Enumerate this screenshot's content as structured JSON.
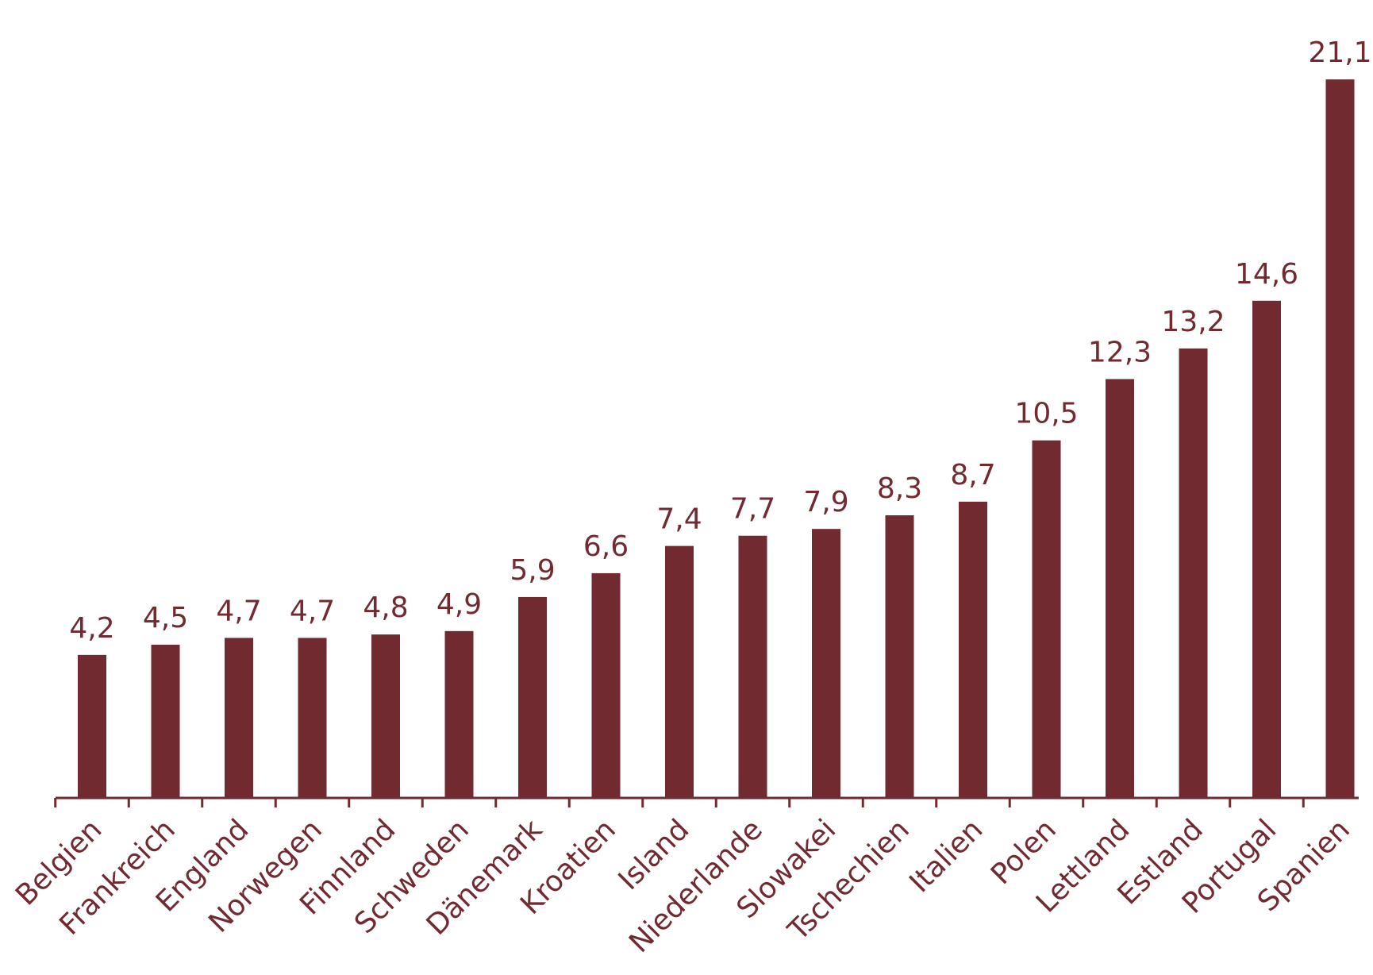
{
  "chart_data": {
    "type": "bar",
    "categories": [
      "Belgien",
      "Frankreich",
      "England",
      "Norwegen",
      "Finnland",
      "Schweden",
      "Dänemark",
      "Kroatien",
      "Island",
      "Niederlande",
      "Slowakei",
      "Tschechien",
      "Italien",
      "Polen",
      "Lettland",
      "Estland",
      "Portugal",
      "Spanien"
    ],
    "values": [
      4.2,
      4.5,
      4.7,
      4.7,
      4.8,
      4.9,
      5.9,
      6.6,
      7.4,
      7.7,
      7.9,
      8.3,
      8.7,
      10.5,
      12.3,
      13.2,
      14.6,
      21.1
    ],
    "value_labels": [
      "4,2",
      "4,5",
      "4,7",
      "4,7",
      "4,8",
      "4,9",
      "5,9",
      "6,6",
      "7,4",
      "7,7",
      "7,9",
      "8,3",
      "8,7",
      "10,5",
      "12,3",
      "13,2",
      "14,6",
      "21,1"
    ],
    "title": "",
    "xlabel": "",
    "ylabel": "",
    "ylim": [
      0,
      21.1
    ],
    "grid": false,
    "legend": "none",
    "colors": {
      "bar": "#722a31",
      "axis": "#722a31",
      "text": "#722a31"
    }
  }
}
